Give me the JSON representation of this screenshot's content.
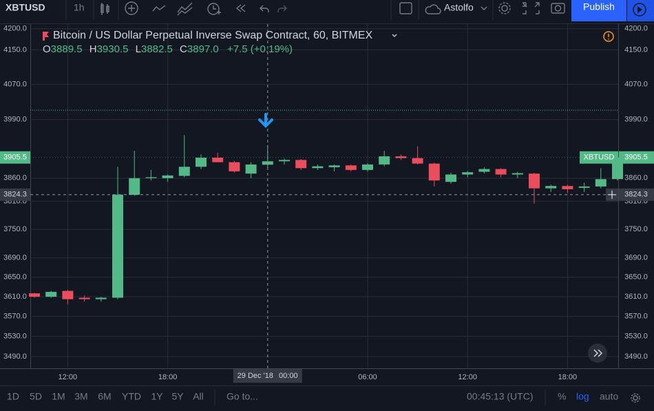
{
  "toolbar": {
    "symbol": "XBTUSD",
    "interval": "1h",
    "user": "Astolfo",
    "publish": "Publish"
  },
  "chart_data": {
    "type": "candlestick",
    "title": "Bitcoin / US Dollar Perpetual Inverse Swap Contract, 60, BITMEX",
    "legend": {
      "o": "O",
      "open": "3889.5",
      "h": "H",
      "high": "3930.5",
      "l": "L",
      "low": "3882.5",
      "c": "C",
      "close": "3897.0",
      "change": "+7.5 (+0.19%)"
    },
    "categories": [
      null,
      null,
      "12:00",
      null,
      null,
      null,
      null,
      null,
      "18:00",
      null,
      null,
      null,
      null,
      null,
      null,
      null,
      null,
      null,
      null,
      null,
      "06:00",
      null,
      null,
      null,
      null,
      null,
      "12:00",
      null,
      null,
      null,
      null,
      null,
      "18:00",
      null,
      null,
      null
    ],
    "open": [
      3617,
      3610,
      3622,
      3608,
      3605,
      3608,
      3824,
      3860,
      3860,
      3865,
      3885,
      3905,
      3895,
      3870,
      3889.5,
      3897,
      3900,
      3882,
      3884,
      3888,
      3878,
      3890,
      3908,
      3904,
      3892,
      3852,
      3868,
      3874,
      3880,
      3868,
      3870,
      3838,
      3843,
      3839,
      3842,
      3858
    ],
    "high": [
      3618,
      3622,
      3624,
      3612,
      3610,
      3885,
      3920,
      3878,
      3868,
      3955,
      3912,
      3916,
      3898,
      3895,
      3930.5,
      3903,
      3902,
      3890,
      3890,
      3890,
      3893,
      3920,
      3912,
      3930,
      3894,
      3872,
      3876,
      3884,
      3882,
      3874,
      3872,
      3846,
      3846,
      3850,
      3882,
      3908
    ],
    "low": [
      3608,
      3608,
      3595,
      3600,
      3600,
      3605,
      3822,
      3855,
      3852,
      3862,
      3880,
      3895,
      3872,
      3860,
      3882.5,
      3890,
      3878,
      3878,
      3875,
      3875,
      3874,
      3886,
      3900,
      3890,
      3842,
      3848,
      3862,
      3870,
      3862,
      3860,
      3805,
      3830,
      3828,
      3830,
      3838,
      3855
    ],
    "close": [
      3610,
      3620,
      3605,
      3605,
      3608,
      3824.3,
      3860,
      3862,
      3866,
      3885,
      3905,
      3895,
      3875,
      3890,
      3897.0,
      3900,
      3882,
      3886,
      3888,
      3878,
      3890,
      3908,
      3904,
      3892,
      3855,
      3868,
      3873,
      3880,
      3868,
      3871,
      3838,
      3843,
      3836,
      3842,
      3858,
      3905.5
    ],
    "up_color": "#53b987",
    "down_color": "#eb4d5c",
    "ylim": [
      3467,
      4211
    ],
    "log": true,
    "grid": true,
    "yticks": [
      {
        "value": 4200,
        "label": "4200.0"
      },
      {
        "value": 4150,
        "label": "4150.0"
      },
      {
        "value": 4070,
        "label": "4070.0"
      },
      {
        "value": 3990,
        "label": "3990.0"
      },
      {
        "value": 3860,
        "label": "3860.0"
      },
      {
        "value": 3810,
        "label": "3810.0"
      },
      {
        "value": 3750,
        "label": "3750.0"
      },
      {
        "value": 3690,
        "label": "3690.0"
      },
      {
        "value": 3650,
        "label": "3650.0"
      },
      {
        "value": 3610,
        "label": "3610.0"
      },
      {
        "value": 3570,
        "label": "3570.0"
      },
      {
        "value": 3530,
        "label": "3530.0"
      },
      {
        "value": 3490,
        "label": "3490.0"
      }
    ],
    "price_line": 4011,
    "last_price": {
      "name": "XBTUSD",
      "value": 3905.5,
      "label": "3905.5"
    },
    "crosshair": {
      "date": "29 Dec '18",
      "time": "00:00",
      "price": {
        "value": 3824.3,
        "label": "3824.3"
      }
    }
  },
  "bottom": {
    "ranges": [
      "1D",
      "5D",
      "1M",
      "3M",
      "6M",
      "YTD",
      "1Y",
      "5Y",
      "All"
    ],
    "goto": "Go to...",
    "clock": "00:45:13 (UTC)",
    "percent": "%",
    "log": "log",
    "auto": "auto"
  }
}
